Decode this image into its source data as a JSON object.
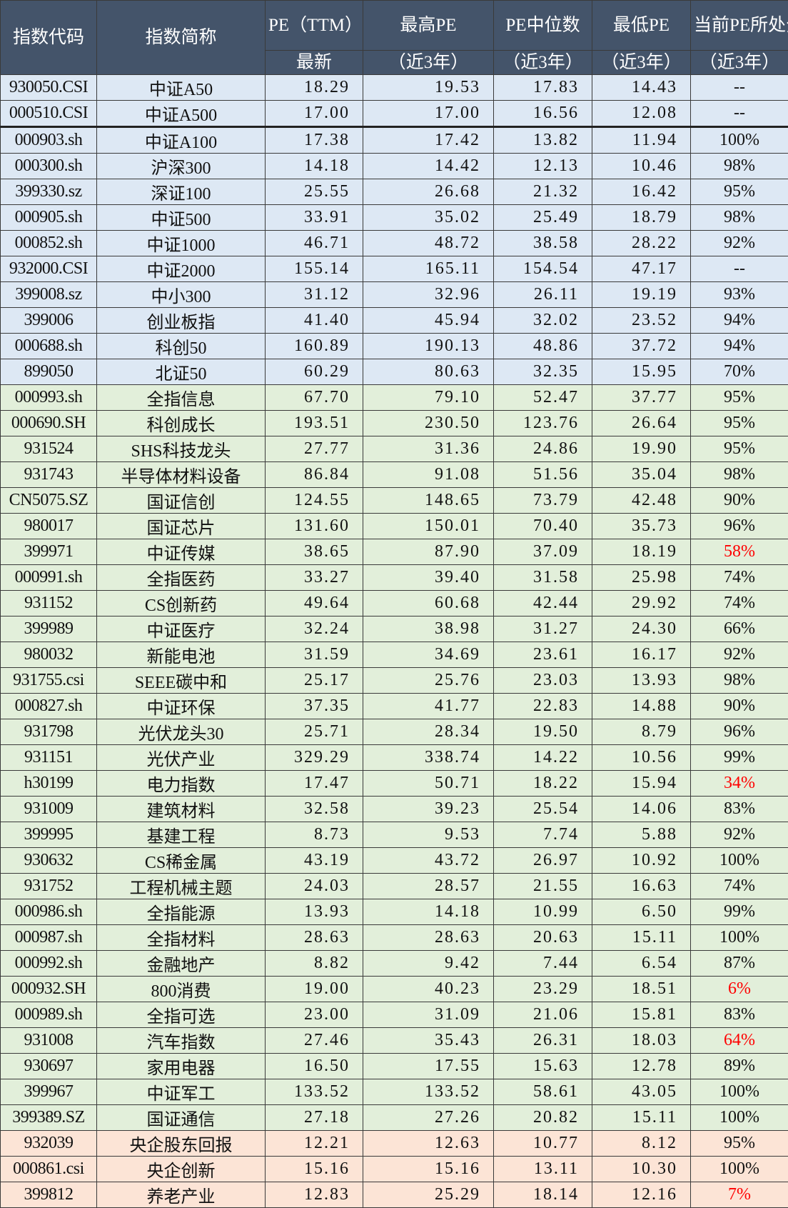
{
  "header": {
    "code": "指数代码",
    "name": "指数简称",
    "pe_top": "PE（TTM）",
    "pe_bottom": "最新",
    "high_top": "最高PE",
    "high_bottom": "（近3年）",
    "median_top": "PE中位数",
    "median_bottom": "（近3年）",
    "low_top": "最低PE",
    "low_bottom": "（近3年）",
    "pct_top": "当前PE所处分位",
    "pct_bottom": "（近3年）"
  },
  "colors": {
    "header": "#44546a",
    "blue": "#dde8f4",
    "green": "#e2efda",
    "peach": "#fce4d6",
    "highlight": "#ff0000"
  },
  "rows": [
    {
      "g": "blue",
      "code": "930050.CSI",
      "name": "中证A50",
      "pe": "18.29",
      "high": "19.53",
      "median": "17.83",
      "low": "14.43",
      "pct": "--"
    },
    {
      "g": "blue",
      "code": "000510.CSI",
      "name": "中证A500",
      "pe": "17.00",
      "high": "17.00",
      "median": "16.56",
      "low": "12.08",
      "pct": "--"
    },
    {
      "g": "blue",
      "code": "000903.sh",
      "name": "中证A100",
      "pe": "17.38",
      "high": "17.42",
      "median": "13.82",
      "low": "11.94",
      "pct": "100%"
    },
    {
      "g": "blue",
      "code": "000300.sh",
      "name": "沪深300",
      "pe": "14.18",
      "high": "14.42",
      "median": "12.13",
      "low": "10.46",
      "pct": "98%"
    },
    {
      "g": "blue",
      "code": "399330.sz",
      "name": "深证100",
      "pe": "25.55",
      "high": "26.68",
      "median": "21.32",
      "low": "16.42",
      "pct": "95%"
    },
    {
      "g": "blue",
      "code": "000905.sh",
      "name": "中证500",
      "pe": "33.91",
      "high": "35.02",
      "median": "25.49",
      "low": "18.79",
      "pct": "98%"
    },
    {
      "g": "blue",
      "code": "000852.sh",
      "name": "中证1000",
      "pe": "46.71",
      "high": "48.72",
      "median": "38.58",
      "low": "28.22",
      "pct": "92%"
    },
    {
      "g": "blue",
      "code": "932000.CSI",
      "name": "中证2000",
      "pe": "155.14",
      "high": "165.11",
      "median": "154.54",
      "low": "47.17",
      "pct": "--"
    },
    {
      "g": "blue",
      "code": "399008.sz",
      "name": "中小300",
      "pe": "31.12",
      "high": "32.96",
      "median": "26.11",
      "low": "19.19",
      "pct": "93%"
    },
    {
      "g": "blue",
      "code": "399006",
      "name": "创业板指",
      "pe": "41.40",
      "high": "45.94",
      "median": "32.02",
      "low": "23.52",
      "pct": "94%"
    },
    {
      "g": "blue",
      "code": "000688.sh",
      "name": "科创50",
      "pe": "160.89",
      "high": "190.13",
      "median": "48.86",
      "low": "37.72",
      "pct": "94%"
    },
    {
      "g": "blue",
      "code": "899050",
      "name": "北证50",
      "pe": "60.29",
      "high": "80.63",
      "median": "32.35",
      "low": "15.95",
      "pct": "70%"
    },
    {
      "g": "green",
      "code": "000993.sh",
      "name": "全指信息",
      "pe": "67.70",
      "high": "79.10",
      "median": "52.47",
      "low": "37.77",
      "pct": "95%"
    },
    {
      "g": "green",
      "code": "000690.SH",
      "name": "科创成长",
      "pe": "193.51",
      "high": "230.50",
      "median": "123.76",
      "low": "26.64",
      "pct": "95%"
    },
    {
      "g": "green",
      "code": "931524",
      "name": "SHS科技龙头",
      "pe": "27.77",
      "high": "31.36",
      "median": "24.86",
      "low": "19.90",
      "pct": "95%"
    },
    {
      "g": "green",
      "code": "931743",
      "name": "半导体材料设备",
      "pe": "86.84",
      "high": "91.08",
      "median": "51.56",
      "low": "35.04",
      "pct": "98%"
    },
    {
      "g": "green",
      "code": "CN5075.SZ",
      "name": "国证信创",
      "pe": "124.55",
      "high": "148.65",
      "median": "73.79",
      "low": "42.48",
      "pct": "90%"
    },
    {
      "g": "green",
      "code": "980017",
      "name": "国证芯片",
      "pe": "131.60",
      "high": "150.01",
      "median": "70.40",
      "low": "35.73",
      "pct": "96%"
    },
    {
      "g": "green",
      "code": "399971",
      "name": "中证传媒",
      "pe": "38.65",
      "high": "87.90",
      "median": "37.09",
      "low": "18.19",
      "pct": "58%",
      "red": true
    },
    {
      "g": "green",
      "code": "000991.sh",
      "name": "全指医药",
      "pe": "33.27",
      "high": "39.40",
      "median": "31.58",
      "low": "25.98",
      "pct": "74%"
    },
    {
      "g": "green",
      "code": "931152",
      "name": "CS创新药",
      "pe": "49.64",
      "high": "60.68",
      "median": "42.44",
      "low": "29.92",
      "pct": "74%"
    },
    {
      "g": "green",
      "code": "399989",
      "name": "中证医疗",
      "pe": "32.24",
      "high": "38.98",
      "median": "31.27",
      "low": "24.30",
      "pct": "66%"
    },
    {
      "g": "green",
      "code": "980032",
      "name": "新能电池",
      "pe": "31.59",
      "high": "34.69",
      "median": "23.61",
      "low": "16.17",
      "pct": "92%"
    },
    {
      "g": "green",
      "code": "931755.csi",
      "name": "SEEE碳中和",
      "pe": "25.17",
      "high": "25.76",
      "median": "23.03",
      "low": "13.93",
      "pct": "98%"
    },
    {
      "g": "green",
      "code": "000827.sh",
      "name": "中证环保",
      "pe": "37.35",
      "high": "41.77",
      "median": "22.83",
      "low": "14.88",
      "pct": "90%"
    },
    {
      "g": "green",
      "code": "931798",
      "name": "光伏龙头30",
      "pe": "25.71",
      "high": "28.34",
      "median": "19.50",
      "low": "8.79",
      "pct": "96%"
    },
    {
      "g": "green",
      "code": "931151",
      "name": "光伏产业",
      "pe": "329.29",
      "high": "338.74",
      "median": "14.22",
      "low": "10.56",
      "pct": "99%"
    },
    {
      "g": "green",
      "code": "h30199",
      "name": "电力指数",
      "pe": "17.47",
      "high": "50.71",
      "median": "18.22",
      "low": "15.94",
      "pct": "34%",
      "red": true
    },
    {
      "g": "green",
      "code": "931009",
      "name": "建筑材料",
      "pe": "32.58",
      "high": "39.23",
      "median": "25.54",
      "low": "14.06",
      "pct": "83%"
    },
    {
      "g": "green",
      "code": "399995",
      "name": "基建工程",
      "pe": "8.73",
      "high": "9.53",
      "median": "7.74",
      "low": "5.88",
      "pct": "92%"
    },
    {
      "g": "green",
      "code": "930632",
      "name": "CS稀金属",
      "pe": "43.19",
      "high": "43.72",
      "median": "26.97",
      "low": "10.92",
      "pct": "100%"
    },
    {
      "g": "green",
      "code": "931752",
      "name": "工程机械主题",
      "pe": "24.03",
      "high": "28.57",
      "median": "21.55",
      "low": "16.63",
      "pct": "74%"
    },
    {
      "g": "green",
      "code": "000986.sh",
      "name": "全指能源",
      "pe": "13.93",
      "high": "14.18",
      "median": "10.99",
      "low": "6.50",
      "pct": "99%"
    },
    {
      "g": "green",
      "code": "000987.sh",
      "name": "全指材料",
      "pe": "28.63",
      "high": "28.63",
      "median": "20.63",
      "low": "15.11",
      "pct": "100%"
    },
    {
      "g": "green",
      "code": "000992.sh",
      "name": "金融地产",
      "pe": "8.82",
      "high": "9.42",
      "median": "7.44",
      "low": "6.54",
      "pct": "87%"
    },
    {
      "g": "green",
      "code": "000932.SH",
      "name": "800消费",
      "pe": "19.00",
      "high": "40.23",
      "median": "23.29",
      "low": "18.51",
      "pct": "6%",
      "red": true
    },
    {
      "g": "green",
      "code": "000989.sh",
      "name": "全指可选",
      "pe": "23.00",
      "high": "31.09",
      "median": "21.06",
      "low": "15.81",
      "pct": "83%"
    },
    {
      "g": "green",
      "code": "931008",
      "name": "汽车指数",
      "pe": "27.46",
      "high": "35.43",
      "median": "26.31",
      "low": "18.03",
      "pct": "64%",
      "red": true
    },
    {
      "g": "green",
      "code": "930697",
      "name": "家用电器",
      "pe": "16.50",
      "high": "17.55",
      "median": "15.63",
      "low": "12.78",
      "pct": "89%"
    },
    {
      "g": "green",
      "code": "399967",
      "name": "中证军工",
      "pe": "133.52",
      "high": "133.52",
      "median": "58.61",
      "low": "43.05",
      "pct": "100%"
    },
    {
      "g": "green",
      "code": "399389.SZ",
      "name": "国证通信",
      "pe": "27.18",
      "high": "27.26",
      "median": "20.82",
      "low": "15.11",
      "pct": "100%"
    },
    {
      "g": "peach",
      "code": "932039",
      "name": "央企股东回报",
      "pe": "12.21",
      "high": "12.63",
      "median": "10.77",
      "low": "8.12",
      "pct": "95%"
    },
    {
      "g": "peach",
      "code": "000861.csi",
      "name": "央企创新",
      "pe": "15.16",
      "high": "15.16",
      "median": "13.11",
      "low": "10.30",
      "pct": "100%"
    },
    {
      "g": "peach",
      "code": "399812",
      "name": "养老产业",
      "pe": "12.83",
      "high": "25.29",
      "median": "18.14",
      "low": "12.16",
      "pct": "7%",
      "red": true
    }
  ]
}
